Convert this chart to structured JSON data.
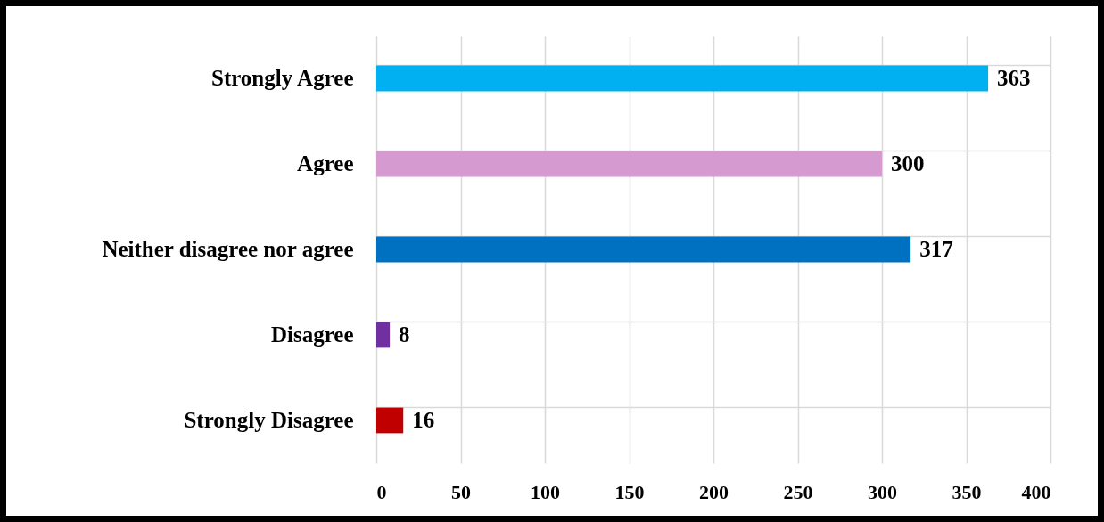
{
  "chart_data": {
    "type": "bar",
    "orientation": "horizontal",
    "categories": [
      "Strongly Agree",
      "Agree",
      "Neither disagree nor agree",
      "Disagree",
      "Strongly Disagree"
    ],
    "values": [
      363,
      300,
      317,
      8,
      16
    ],
    "colors": [
      "#00b0f0",
      "#d59ad0",
      "#0070c0",
      "#7030a0",
      "#c00000"
    ],
    "xlim": [
      0,
      400
    ],
    "xticks": [
      0,
      50,
      100,
      150,
      200,
      250,
      300,
      350,
      400
    ],
    "grid": true,
    "data_labels": true
  }
}
